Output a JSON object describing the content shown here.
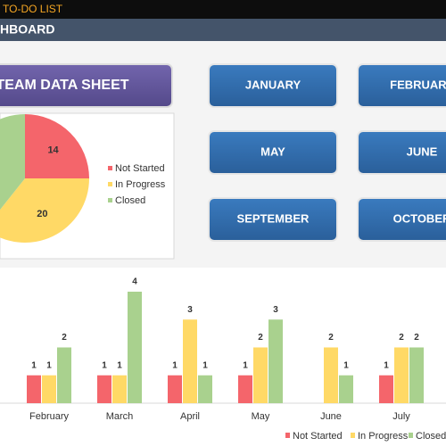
{
  "header": {
    "app_title": "TO-DO LIST",
    "section": "HBOARD"
  },
  "buttons": {
    "team": "TEAM DATA SHEET",
    "months": [
      "JANUARY",
      "FEBRUARY",
      "MAY",
      "JUNE",
      "SEPTEMBER",
      "OCTOBER"
    ]
  },
  "chart_data": [
    {
      "type": "pie",
      "categories": [
        "Not Started",
        "In Progress",
        "Closed"
      ],
      "values": [
        14,
        20,
        22
      ],
      "colors": [
        "#f4656b",
        "#ffd966",
        "#a9d18e"
      ],
      "legend": "right"
    },
    {
      "type": "bar",
      "categories": [
        "February",
        "March",
        "April",
        "May",
        "June",
        "July"
      ],
      "series": [
        {
          "name": "Not Started",
          "color": "#f4656b",
          "values": [
            1,
            1,
            1,
            1,
            null,
            1
          ]
        },
        {
          "name": "In Progress",
          "color": "#ffd966",
          "values": [
            1,
            1,
            3,
            2,
            2,
            2
          ]
        },
        {
          "name": "Closed",
          "color": "#a9d18e",
          "values": [
            2,
            4,
            1,
            3,
            1,
            2
          ]
        }
      ],
      "ylim": [
        0,
        4
      ],
      "legend": "bottom"
    }
  ]
}
